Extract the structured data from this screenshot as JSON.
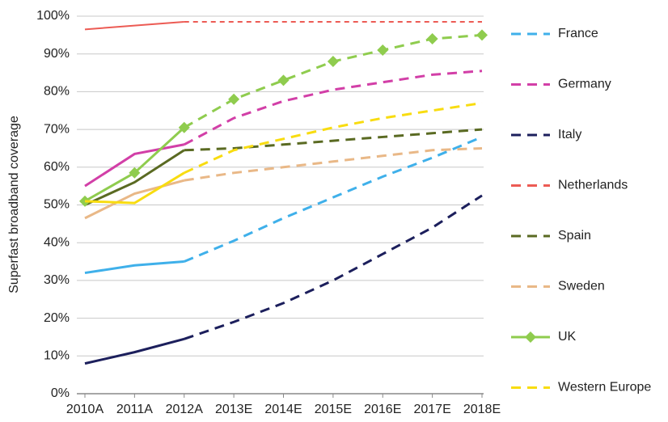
{
  "chart_data": {
    "type": "line",
    "y_label": "Superfast broadband coverage",
    "categories": [
      "2010A",
      "2011A",
      "2012A",
      "2013E",
      "2014E",
      "2015E",
      "2016E",
      "2017E",
      "2018E"
    ],
    "solid_until": "2012A",
    "ylim": [
      0,
      100
    ],
    "yticks": [
      {
        "value": 0,
        "label": "0%"
      },
      {
        "value": 10,
        "label": "10%"
      },
      {
        "value": 20,
        "label": "20%"
      },
      {
        "value": 30,
        "label": "30%"
      },
      {
        "value": 40,
        "label": "40%"
      },
      {
        "value": 50,
        "label": "50%"
      },
      {
        "value": 60,
        "label": "60%"
      },
      {
        "value": 70,
        "label": "70%"
      },
      {
        "value": 80,
        "label": "80%"
      },
      {
        "value": 90,
        "label": "90%"
      },
      {
        "value": 100,
        "label": "100%"
      }
    ],
    "grid": true,
    "legend": "right",
    "series": [
      {
        "name": "France",
        "color": "#3fb0ea",
        "values": [
          32,
          34,
          35,
          40.5,
          46.5,
          52,
          57.5,
          62.5,
          68
        ]
      },
      {
        "name": "Germany",
        "color": "#d23fa7",
        "values": [
          55,
          63.5,
          66,
          73,
          77.5,
          80.5,
          82.5,
          84.5,
          85.5
        ]
      },
      {
        "name": "Italy",
        "color": "#1c1f5c",
        "values": [
          8,
          11,
          14.5,
          19,
          24,
          30,
          37,
          44,
          52.5
        ]
      },
      {
        "name": "Netherlands",
        "color": "#ec5b54",
        "thin": true,
        "values": [
          96.5,
          97.5,
          98.5,
          98.5,
          98.5,
          98.5,
          98.5,
          98.5,
          98.5
        ]
      },
      {
        "name": "Spain",
        "color": "#5a6a22",
        "values": [
          50,
          56,
          64.5,
          65,
          66,
          67,
          68,
          69,
          70
        ]
      },
      {
        "name": "Sweden",
        "color": "#e9b887",
        "values": [
          46.5,
          53,
          56.5,
          58.5,
          60,
          61.5,
          63,
          64.5,
          65
        ]
      },
      {
        "name": "UK",
        "color": "#8fcc4e",
        "marker": "diamond",
        "values": [
          51,
          58.5,
          70.5,
          78,
          83,
          88,
          91,
          94,
          95
        ]
      },
      {
        "name": "Western Europe",
        "color": "#f8dc10",
        "values": [
          51,
          50.5,
          58.5,
          64.5,
          67.5,
          70.5,
          73,
          75,
          77
        ]
      }
    ]
  }
}
